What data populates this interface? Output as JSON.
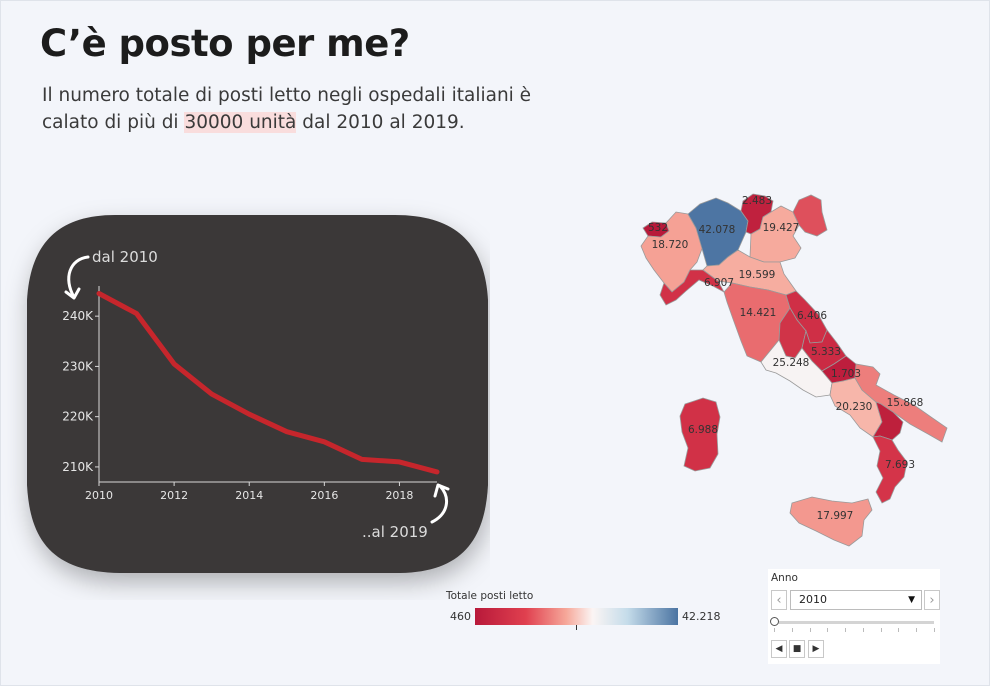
{
  "title": "C’è posto per me?",
  "subtitle": {
    "before": "Il numero totale di posti letto negli ospedali italiani è calato di più di ",
    "highlight": "30000 unità",
    "after": " dal 2010 al 2019."
  },
  "chart_data": [
    {
      "type": "line",
      "x": [
        2010,
        2011,
        2012,
        2013,
        2014,
        2015,
        2016,
        2017,
        2018,
        2019
      ],
      "series": [
        {
          "values": [
            244500,
            240500,
            230500,
            224500,
            220500,
            217000,
            215000,
            211500,
            211000,
            209000
          ]
        }
      ],
      "xticks": [
        "2010",
        "2012",
        "2014",
        "2016",
        "2018"
      ],
      "yticks": [
        "210K",
        "220K",
        "230K",
        "240K"
      ],
      "xlim": [
        2010,
        2019
      ],
      "ylim": [
        207000,
        246000
      ],
      "line_color": "#c6262c",
      "background_color": "#3a3839",
      "annotations": [
        "dal 2010",
        "..al 2019"
      ]
    },
    {
      "type": "choropleth-map",
      "title": "Totale posti letto",
      "regions": [
        {
          "name": "Valle d'Aosta",
          "label": "532",
          "value": 532
        },
        {
          "name": "Piemonte",
          "label": "18.720",
          "value": 18720
        },
        {
          "name": "Lombardia",
          "label": "42.078",
          "value": 42078
        },
        {
          "name": "Trentino-Alto Adige",
          "label": "2.483",
          "value": 2483
        },
        {
          "name": "Veneto",
          "label": "19.427",
          "value": 19427
        },
        {
          "name": "Friuli-Venezia Giulia",
          "label": "",
          "value": null
        },
        {
          "name": "Liguria",
          "label": "6.907",
          "value": 6907
        },
        {
          "name": "Emilia-Romagna",
          "label": "19.599",
          "value": 19599
        },
        {
          "name": "Toscana",
          "label": "14.421",
          "value": 14421
        },
        {
          "name": "Marche",
          "label": "6.406",
          "value": 6406
        },
        {
          "name": "Umbria",
          "label": "",
          "value": null
        },
        {
          "name": "Lazio",
          "label": "25.248",
          "value": 25248
        },
        {
          "name": "Abruzzo",
          "label": "5.333",
          "value": 5333
        },
        {
          "name": "Molise",
          "label": "1.703",
          "value": 1703
        },
        {
          "name": "Campania",
          "label": "20.230",
          "value": 20230
        },
        {
          "name": "Puglia",
          "label": "15.868",
          "value": 15868
        },
        {
          "name": "Basilicata",
          "label": "",
          "value": null
        },
        {
          "name": "Calabria",
          "label": "7.693",
          "value": 7693
        },
        {
          "name": "Sardegna",
          "label": "6.988",
          "value": 6988
        },
        {
          "name": "Sicilia",
          "label": "17.997",
          "value": 17997
        }
      ],
      "legend": {
        "title": "Totale posti letto",
        "min_label": "460",
        "max_label": "42.218",
        "min": 460,
        "max": 42218
      }
    }
  ],
  "legend": {
    "title": "Totale posti letto",
    "min_label": "460",
    "max_label": "42.218"
  },
  "filter": {
    "label": "Anno",
    "selected": "2010",
    "prev_icon": "chevron-left-icon",
    "next_icon": "chevron-right-icon",
    "caret_icon": "caret-down-icon",
    "playback_icons": [
      "step-back-icon",
      "stop-icon",
      "play-icon"
    ]
  }
}
